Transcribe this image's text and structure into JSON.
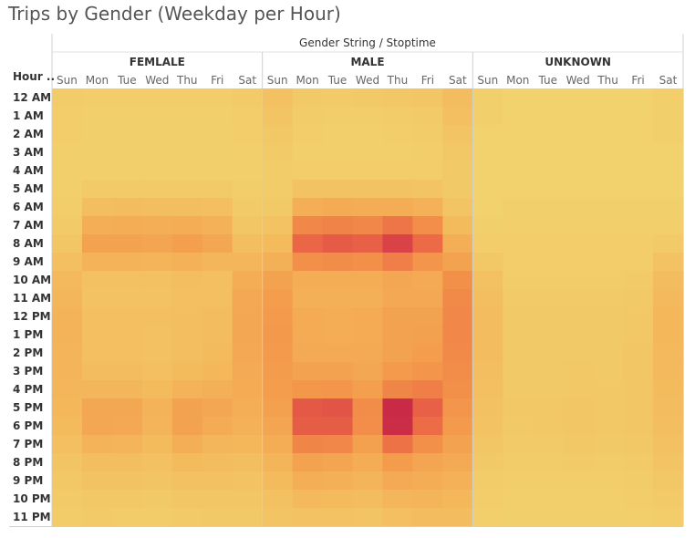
{
  "title": "Trips by Gender (Weekday per Hour)",
  "chart_data": {
    "type": "heatmap",
    "title": "Trips by Gender (Weekday per Hour)",
    "column_header": "Gender String / Stoptime",
    "row_header": "Hour ..",
    "groups": [
      "FEMLALE",
      "MALE",
      "UNKNOWN"
    ],
    "days": [
      "Sun",
      "Mon",
      "Tue",
      "Wed",
      "Thu",
      "Fri",
      "Sat"
    ],
    "hours": [
      "12 AM",
      "1 AM",
      "2 AM",
      "3 AM",
      "4 AM",
      "5 AM",
      "6 AM",
      "7 AM",
      "8 AM",
      "9 AM",
      "10 AM",
      "11 AM",
      "12 PM",
      "1 PM",
      "2 PM",
      "3 PM",
      "4 PM",
      "5 PM",
      "6 PM",
      "7 PM",
      "8 PM",
      "9 PM",
      "10 PM",
      "11 PM"
    ],
    "color_scale": [
      "#f1d56f",
      "#f4b65a",
      "#f3974a",
      "#ec6a46",
      "#d73e46",
      "#bf1c46"
    ],
    "values_relative_intensity": {
      "FEMLALE": [
        [
          0.06,
          0.05,
          0.05,
          0.05,
          0.05,
          0.05,
          0.07
        ],
        [
          0.05,
          0.04,
          0.04,
          0.04,
          0.04,
          0.04,
          0.05
        ],
        [
          0.05,
          0.03,
          0.03,
          0.03,
          0.03,
          0.03,
          0.05
        ],
        [
          0.04,
          0.03,
          0.03,
          0.03,
          0.03,
          0.03,
          0.04
        ],
        [
          0.04,
          0.04,
          0.04,
          0.04,
          0.04,
          0.04,
          0.04
        ],
        [
          0.04,
          0.07,
          0.07,
          0.07,
          0.07,
          0.07,
          0.05
        ],
        [
          0.05,
          0.15,
          0.16,
          0.15,
          0.15,
          0.14,
          0.07
        ],
        [
          0.07,
          0.25,
          0.26,
          0.25,
          0.26,
          0.23,
          0.1
        ],
        [
          0.1,
          0.32,
          0.33,
          0.31,
          0.35,
          0.3,
          0.15
        ],
        [
          0.14,
          0.22,
          0.22,
          0.21,
          0.23,
          0.2,
          0.2
        ],
        [
          0.18,
          0.13,
          0.13,
          0.13,
          0.15,
          0.14,
          0.26
        ],
        [
          0.2,
          0.12,
          0.12,
          0.12,
          0.14,
          0.14,
          0.29
        ],
        [
          0.22,
          0.14,
          0.14,
          0.14,
          0.15,
          0.16,
          0.3
        ],
        [
          0.22,
          0.14,
          0.14,
          0.13,
          0.15,
          0.16,
          0.3
        ],
        [
          0.21,
          0.14,
          0.14,
          0.13,
          0.15,
          0.17,
          0.29
        ],
        [
          0.21,
          0.16,
          0.16,
          0.14,
          0.17,
          0.19,
          0.28
        ],
        [
          0.2,
          0.2,
          0.2,
          0.17,
          0.22,
          0.24,
          0.27
        ],
        [
          0.19,
          0.3,
          0.3,
          0.22,
          0.32,
          0.3,
          0.25
        ],
        [
          0.17,
          0.3,
          0.29,
          0.21,
          0.33,
          0.27,
          0.23
        ],
        [
          0.14,
          0.22,
          0.21,
          0.17,
          0.25,
          0.2,
          0.19
        ],
        [
          0.11,
          0.15,
          0.15,
          0.13,
          0.17,
          0.16,
          0.15
        ],
        [
          0.09,
          0.12,
          0.12,
          0.11,
          0.13,
          0.13,
          0.12
        ],
        [
          0.07,
          0.09,
          0.09,
          0.08,
          0.1,
          0.1,
          0.1
        ],
        [
          0.06,
          0.07,
          0.06,
          0.06,
          0.07,
          0.08,
          0.08
        ]
      ],
      "MALE": [
        [
          0.13,
          0.08,
          0.07,
          0.08,
          0.09,
          0.1,
          0.16
        ],
        [
          0.11,
          0.06,
          0.05,
          0.05,
          0.06,
          0.07,
          0.14
        ],
        [
          0.09,
          0.05,
          0.04,
          0.04,
          0.05,
          0.06,
          0.11
        ],
        [
          0.07,
          0.04,
          0.04,
          0.04,
          0.04,
          0.05,
          0.09
        ],
        [
          0.06,
          0.05,
          0.05,
          0.05,
          0.05,
          0.05,
          0.08
        ],
        [
          0.06,
          0.12,
          0.12,
          0.12,
          0.12,
          0.11,
          0.08
        ],
        [
          0.08,
          0.25,
          0.27,
          0.26,
          0.26,
          0.23,
          0.11
        ],
        [
          0.12,
          0.47,
          0.49,
          0.47,
          0.55,
          0.44,
          0.17
        ],
        [
          0.17,
          0.62,
          0.67,
          0.64,
          0.78,
          0.6,
          0.25
        ],
        [
          0.24,
          0.43,
          0.45,
          0.43,
          0.51,
          0.41,
          0.33
        ],
        [
          0.32,
          0.26,
          0.26,
          0.26,
          0.3,
          0.28,
          0.43
        ],
        [
          0.36,
          0.24,
          0.24,
          0.24,
          0.29,
          0.29,
          0.46
        ],
        [
          0.38,
          0.27,
          0.26,
          0.27,
          0.32,
          0.33,
          0.47
        ],
        [
          0.39,
          0.27,
          0.26,
          0.27,
          0.32,
          0.34,
          0.47
        ],
        [
          0.38,
          0.28,
          0.28,
          0.28,
          0.33,
          0.36,
          0.46
        ],
        [
          0.37,
          0.32,
          0.33,
          0.3,
          0.38,
          0.41,
          0.45
        ],
        [
          0.36,
          0.4,
          0.41,
          0.35,
          0.48,
          0.51,
          0.43
        ],
        [
          0.34,
          0.68,
          0.7,
          0.45,
          0.92,
          0.64,
          0.41
        ],
        [
          0.31,
          0.66,
          0.66,
          0.44,
          0.9,
          0.59,
          0.38
        ],
        [
          0.26,
          0.48,
          0.47,
          0.34,
          0.56,
          0.43,
          0.33
        ],
        [
          0.21,
          0.32,
          0.31,
          0.26,
          0.37,
          0.31,
          0.28
        ],
        [
          0.17,
          0.25,
          0.24,
          0.21,
          0.28,
          0.26,
          0.23
        ],
        [
          0.13,
          0.18,
          0.17,
          0.16,
          0.2,
          0.21,
          0.19
        ],
        [
          0.11,
          0.12,
          0.12,
          0.11,
          0.14,
          0.16,
          0.16
        ]
      ],
      "UNKNOWN": [
        [
          0.03,
          0.02,
          0.02,
          0.02,
          0.02,
          0.02,
          0.04
        ],
        [
          0.03,
          0.02,
          0.02,
          0.02,
          0.02,
          0.02,
          0.03
        ],
        [
          0.02,
          0.02,
          0.02,
          0.02,
          0.02,
          0.02,
          0.03
        ],
        [
          0.02,
          0.02,
          0.02,
          0.02,
          0.02,
          0.02,
          0.02
        ],
        [
          0.02,
          0.02,
          0.02,
          0.02,
          0.02,
          0.02,
          0.02
        ],
        [
          0.02,
          0.02,
          0.02,
          0.02,
          0.02,
          0.02,
          0.02
        ],
        [
          0.02,
          0.03,
          0.03,
          0.03,
          0.03,
          0.03,
          0.03
        ],
        [
          0.03,
          0.04,
          0.04,
          0.04,
          0.04,
          0.04,
          0.04
        ],
        [
          0.05,
          0.05,
          0.05,
          0.05,
          0.05,
          0.05,
          0.07
        ],
        [
          0.09,
          0.05,
          0.05,
          0.05,
          0.05,
          0.05,
          0.12
        ],
        [
          0.13,
          0.06,
          0.06,
          0.06,
          0.06,
          0.07,
          0.16
        ],
        [
          0.15,
          0.07,
          0.07,
          0.07,
          0.07,
          0.08,
          0.18
        ],
        [
          0.16,
          0.08,
          0.08,
          0.08,
          0.08,
          0.09,
          0.19
        ],
        [
          0.16,
          0.08,
          0.08,
          0.08,
          0.08,
          0.09,
          0.19
        ],
        [
          0.16,
          0.08,
          0.08,
          0.08,
          0.08,
          0.1,
          0.18
        ],
        [
          0.15,
          0.08,
          0.08,
          0.09,
          0.08,
          0.1,
          0.18
        ],
        [
          0.14,
          0.08,
          0.08,
          0.09,
          0.09,
          0.1,
          0.17
        ],
        [
          0.13,
          0.09,
          0.09,
          0.1,
          0.09,
          0.1,
          0.16
        ],
        [
          0.12,
          0.08,
          0.09,
          0.1,
          0.09,
          0.1,
          0.15
        ],
        [
          0.1,
          0.07,
          0.07,
          0.09,
          0.08,
          0.09,
          0.13
        ],
        [
          0.08,
          0.06,
          0.06,
          0.07,
          0.06,
          0.07,
          0.11
        ],
        [
          0.06,
          0.05,
          0.05,
          0.05,
          0.05,
          0.06,
          0.09
        ],
        [
          0.05,
          0.04,
          0.04,
          0.04,
          0.04,
          0.05,
          0.07
        ],
        [
          0.04,
          0.03,
          0.03,
          0.03,
          0.03,
          0.04,
          0.05
        ]
      ]
    }
  }
}
